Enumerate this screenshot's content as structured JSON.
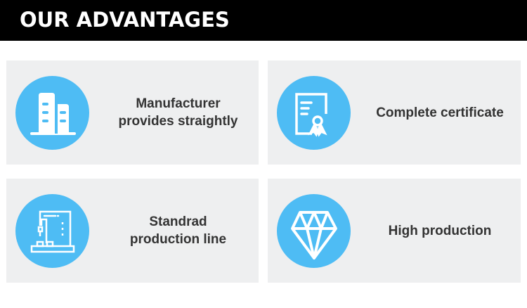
{
  "header": {
    "title": "OUR ADVANTAGES"
  },
  "accent_color": "#4ebcf4",
  "cards": [
    {
      "icon": "buildings-icon",
      "line1": "Manufacturer",
      "line2": "provides straightly"
    },
    {
      "icon": "certificate-icon",
      "line1": "Complete certificate",
      "line2": ""
    },
    {
      "icon": "production-machine-icon",
      "line1": "Standrad",
      "line2": "production line"
    },
    {
      "icon": "diamond-icon",
      "line1": "High production",
      "line2": ""
    }
  ]
}
